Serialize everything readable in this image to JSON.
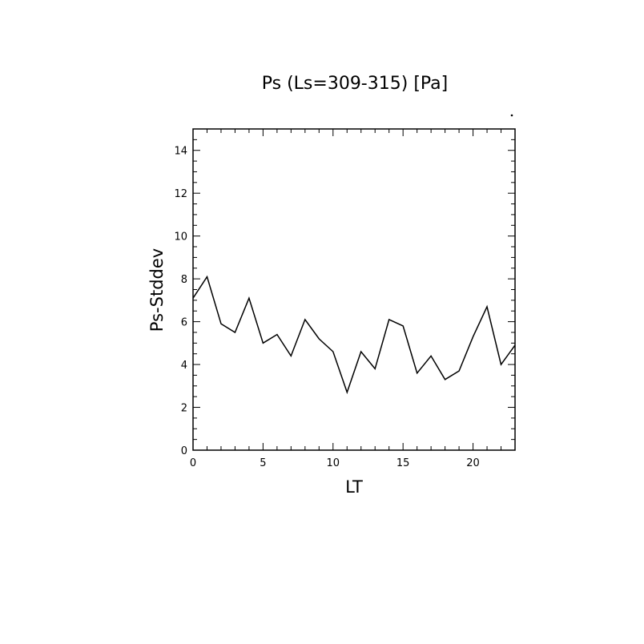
{
  "chart_data": {
    "type": "line",
    "title": "Ps (Ls=309-315) [Pa]",
    "xlabel": "LT",
    "ylabel": "Ps-Stddev",
    "xlim": [
      0,
      23
    ],
    "ylim": [
      0,
      15
    ],
    "xticks": [
      0,
      5,
      10,
      15,
      20
    ],
    "yticks": [
      0,
      2,
      4,
      6,
      8,
      10,
      12,
      14
    ],
    "grid": false,
    "series": [
      {
        "x": [
          0,
          1,
          2,
          3,
          4,
          5,
          6,
          7,
          8,
          9,
          10,
          11,
          12,
          13,
          14,
          15,
          16,
          17,
          18,
          19,
          20,
          21,
          22,
          23
        ],
        "values": [
          7.1,
          8.1,
          5.9,
          5.5,
          7.1,
          5.0,
          5.4,
          4.4,
          6.1,
          5.2,
          4.6,
          2.7,
          4.6,
          3.8,
          6.1,
          5.8,
          3.6,
          4.4,
          3.3,
          3.7,
          5.3,
          6.7,
          4.0,
          4.9
        ]
      }
    ]
  }
}
